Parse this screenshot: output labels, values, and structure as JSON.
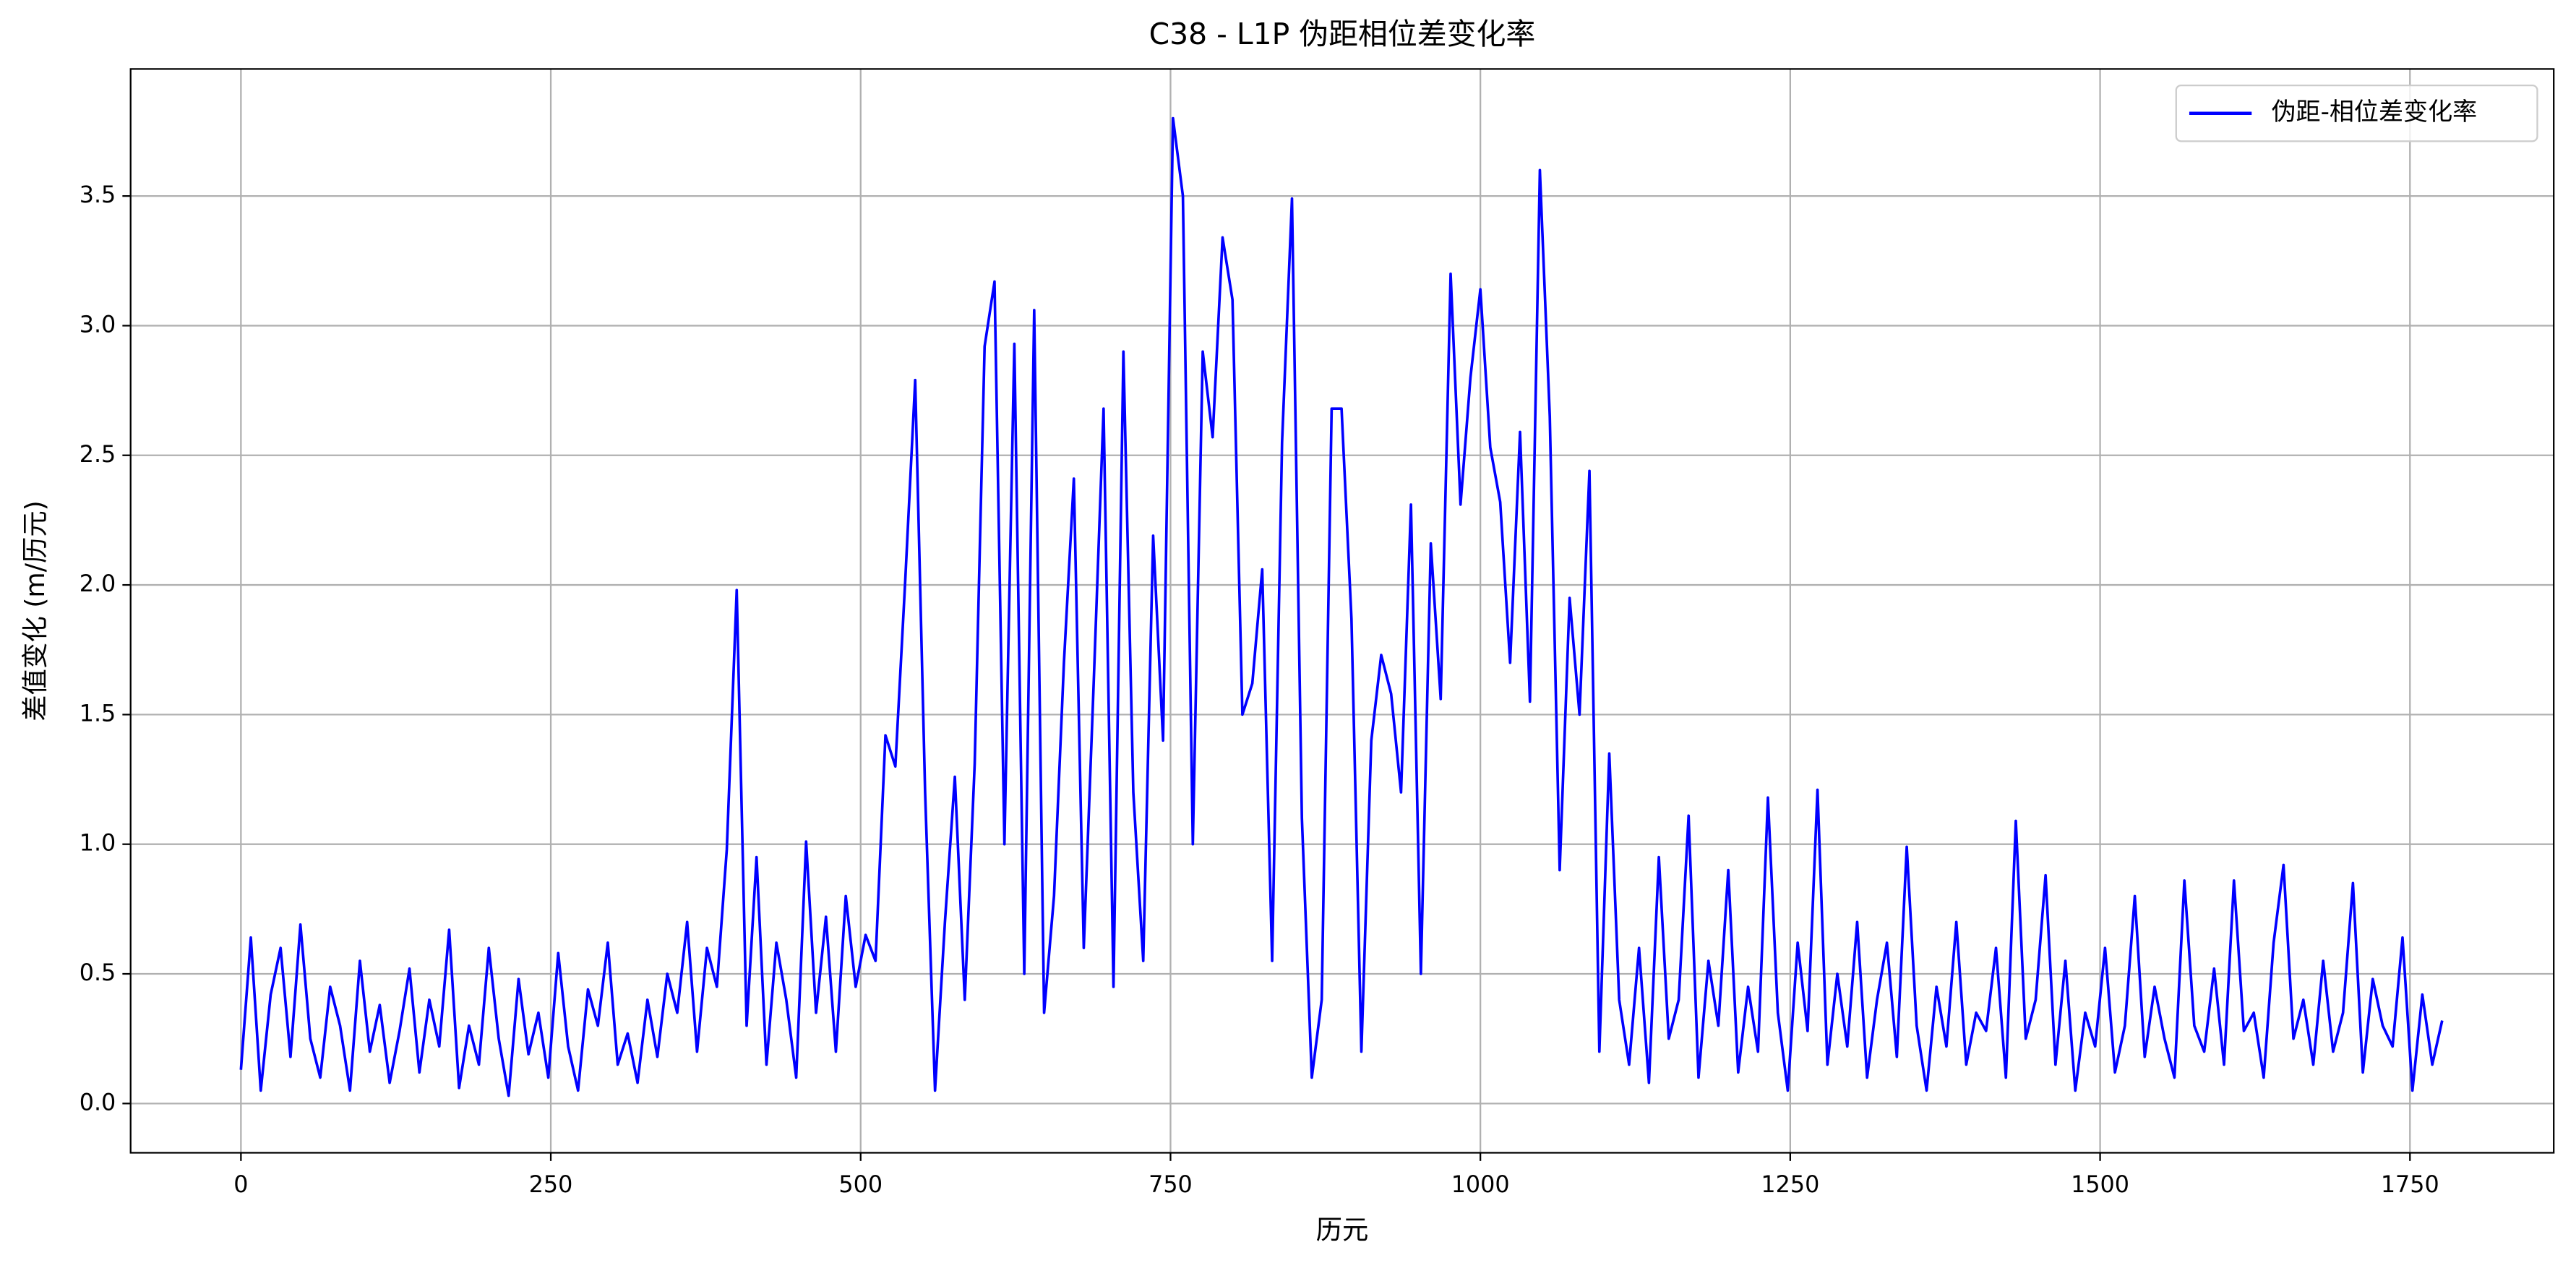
{
  "chart_data": {
    "type": "line",
    "title": "C38 - L1P 伪距相位差变化率",
    "x_label": "历元",
    "y_label": "差值变化 (m/历元)",
    "x": [
      0,
      8,
      16,
      24,
      32,
      40,
      48,
      56,
      64,
      72,
      80,
      88,
      96,
      104,
      112,
      120,
      128,
      136,
      144,
      152,
      160,
      168,
      176,
      184,
      192,
      200,
      208,
      216,
      224,
      232,
      240,
      248,
      256,
      264,
      272,
      280,
      288,
      296,
      304,
      312,
      320,
      328,
      336,
      344,
      352,
      360,
      368,
      376,
      384,
      392,
      400,
      408,
      416,
      424,
      432,
      440,
      448,
      456,
      464,
      472,
      480,
      488,
      496,
      504,
      512,
      520,
      528,
      536,
      544,
      552,
      560,
      568,
      576,
      584,
      592,
      600,
      608,
      616,
      624,
      632,
      640,
      648,
      656,
      664,
      672,
      680,
      688,
      696,
      704,
      712,
      720,
      728,
      736,
      744,
      752,
      760,
      768,
      776,
      784,
      792,
      800,
      808,
      816,
      824,
      832,
      840,
      848,
      856,
      864,
      872,
      880,
      888,
      896,
      904,
      912,
      920,
      928,
      936,
      944,
      952,
      960,
      968,
      976,
      984,
      992,
      1000,
      1008,
      1016,
      1024,
      1032,
      1040,
      1048,
      1056,
      1064,
      1072,
      1080,
      1088,
      1096,
      1104,
      1112,
      1120,
      1128,
      1136,
      1144,
      1152,
      1160,
      1168,
      1176,
      1184,
      1192,
      1200,
      1208,
      1216,
      1224,
      1232,
      1240,
      1248,
      1256,
      1264,
      1272,
      1280,
      1288,
      1296,
      1304,
      1312,
      1320,
      1328,
      1336,
      1344,
      1352,
      1360,
      1368,
      1376,
      1384,
      1392,
      1400,
      1408,
      1416,
      1424,
      1432,
      1440,
      1448,
      1456,
      1464,
      1472,
      1480,
      1488,
      1496,
      1504,
      1512,
      1520,
      1528,
      1536,
      1544,
      1552,
      1560,
      1568,
      1576,
      1584,
      1592,
      1600,
      1608,
      1616,
      1624,
      1632,
      1640,
      1648,
      1656,
      1664,
      1672,
      1680,
      1688,
      1696,
      1704,
      1712,
      1720,
      1728,
      1736,
      1744,
      1752,
      1760,
      1768,
      1776
    ],
    "series": [
      {
        "name": "伪距-相位差变化率",
        "color": "#0000ff",
        "values": [
          0.13,
          0.64,
          0.05,
          0.42,
          0.6,
          0.18,
          0.69,
          0.25,
          0.1,
          0.45,
          0.3,
          0.05,
          0.55,
          0.2,
          0.38,
          0.08,
          0.28,
          0.52,
          0.12,
          0.4,
          0.22,
          0.67,
          0.06,
          0.3,
          0.15,
          0.6,
          0.25,
          0.03,
          0.48,
          0.19,
          0.35,
          0.1,
          0.58,
          0.22,
          0.05,
          0.44,
          0.3,
          0.62,
          0.15,
          0.27,
          0.08,
          0.4,
          0.18,
          0.5,
          0.35,
          0.7,
          0.2,
          0.6,
          0.45,
          0.98,
          1.98,
          0.3,
          0.95,
          0.15,
          0.62,
          0.4,
          0.1,
          1.01,
          0.35,
          0.72,
          0.2,
          0.8,
          0.45,
          0.65,
          0.55,
          1.42,
          1.3,
          2.02,
          2.79,
          1.2,
          0.05,
          0.7,
          1.26,
          0.4,
          1.31,
          2.92,
          3.17,
          1.0,
          2.93,
          0.5,
          3.06,
          0.35,
          0.8,
          1.7,
          2.41,
          0.6,
          1.62,
          2.68,
          0.45,
          2.9,
          1.2,
          0.55,
          2.19,
          1.4,
          3.8,
          3.5,
          1.0,
          2.9,
          2.57,
          3.34,
          3.1,
          1.5,
          1.62,
          2.06,
          0.55,
          2.55,
          3.49,
          1.1,
          0.1,
          0.4,
          2.68,
          2.68,
          1.87,
          0.2,
          1.4,
          1.73,
          1.58,
          1.2,
          2.31,
          0.5,
          2.16,
          1.56,
          3.2,
          2.31,
          2.8,
          3.14,
          2.53,
          2.32,
          1.7,
          2.59,
          1.55,
          3.6,
          2.65,
          0.9,
          1.95,
          1.5,
          2.44,
          0.2,
          1.35,
          0.4,
          0.15,
          0.6,
          0.08,
          0.95,
          0.25,
          0.4,
          1.11,
          0.1,
          0.55,
          0.3,
          0.9,
          0.12,
          0.45,
          0.2,
          1.18,
          0.35,
          0.05,
          0.62,
          0.28,
          1.21,
          0.15,
          0.5,
          0.22,
          0.7,
          0.1,
          0.4,
          0.62,
          0.18,
          0.99,
          0.3,
          0.05,
          0.45,
          0.22,
          0.7,
          0.15,
          0.35,
          0.28,
          0.6,
          0.1,
          1.09,
          0.25,
          0.4,
          0.88,
          0.15,
          0.55,
          0.05,
          0.35,
          0.22,
          0.6,
          0.12,
          0.3,
          0.8,
          0.18,
          0.45,
          0.25,
          0.1,
          0.86,
          0.3,
          0.2,
          0.52,
          0.15,
          0.86,
          0.28,
          0.35,
          0.1,
          0.62,
          0.92,
          0.25,
          0.4,
          0.15,
          0.55,
          0.2,
          0.35,
          0.85,
          0.12,
          0.48,
          0.3,
          0.22,
          0.64,
          0.05,
          0.42,
          0.15,
          0.32
        ]
      }
    ],
    "xlim": [
      -89,
      1866
    ],
    "ylim": [
      -0.19,
      3.99
    ],
    "xticks": [
      0,
      250,
      500,
      750,
      1000,
      1250,
      1500,
      1750
    ],
    "yticks": [
      {
        "value": 0,
        "label": "0.0"
      },
      0.5,
      {
        "value": 1,
        "label": "1.0"
      },
      1.5,
      {
        "value": 2,
        "label": "2.0"
      },
      2.5,
      {
        "value": 3,
        "label": "3.0"
      },
      3.5
    ],
    "grid": true,
    "legend": "upper right"
  }
}
